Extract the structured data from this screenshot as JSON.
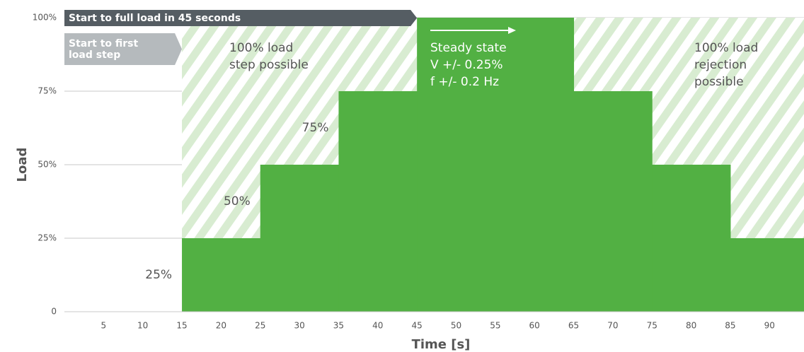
{
  "chart_data": {
    "type": "step-area",
    "x_label": "Time [s]",
    "y_label": "Load",
    "xlim": [
      0,
      94.4
    ],
    "xticks": [
      5,
      10,
      15,
      20,
      25,
      30,
      35,
      40,
      45,
      50,
      55,
      60,
      65,
      70,
      75,
      80,
      85,
      90
    ],
    "ylim": [
      0,
      100
    ],
    "yticks": [
      {
        "value": 0,
        "label": "0"
      },
      {
        "value": 25,
        "label": "25%"
      },
      {
        "value": 50,
        "label": "50%"
      },
      {
        "value": 75,
        "label": "75%"
      },
      {
        "value": 100,
        "label": "100%"
      }
    ],
    "grid": true,
    "color": "#52b043",
    "x": [
      15,
      25,
      35,
      45,
      65,
      75,
      85
    ],
    "values": [
      25,
      50,
      75,
      100,
      75,
      50,
      25
    ],
    "step_labels": [
      "25%",
      "50%",
      "75%"
    ],
    "banners": [
      "Start to full load in 45 seconds",
      [
        "Start to first",
        "load step"
      ]
    ],
    "annotations": [
      [
        "100% load",
        "step possible"
      ],
      [
        "Steady state",
        "V +/- 0.25%",
        "f +/- 0.2 Hz"
      ],
      [
        "100% load",
        "rejection",
        "possible"
      ]
    ]
  }
}
